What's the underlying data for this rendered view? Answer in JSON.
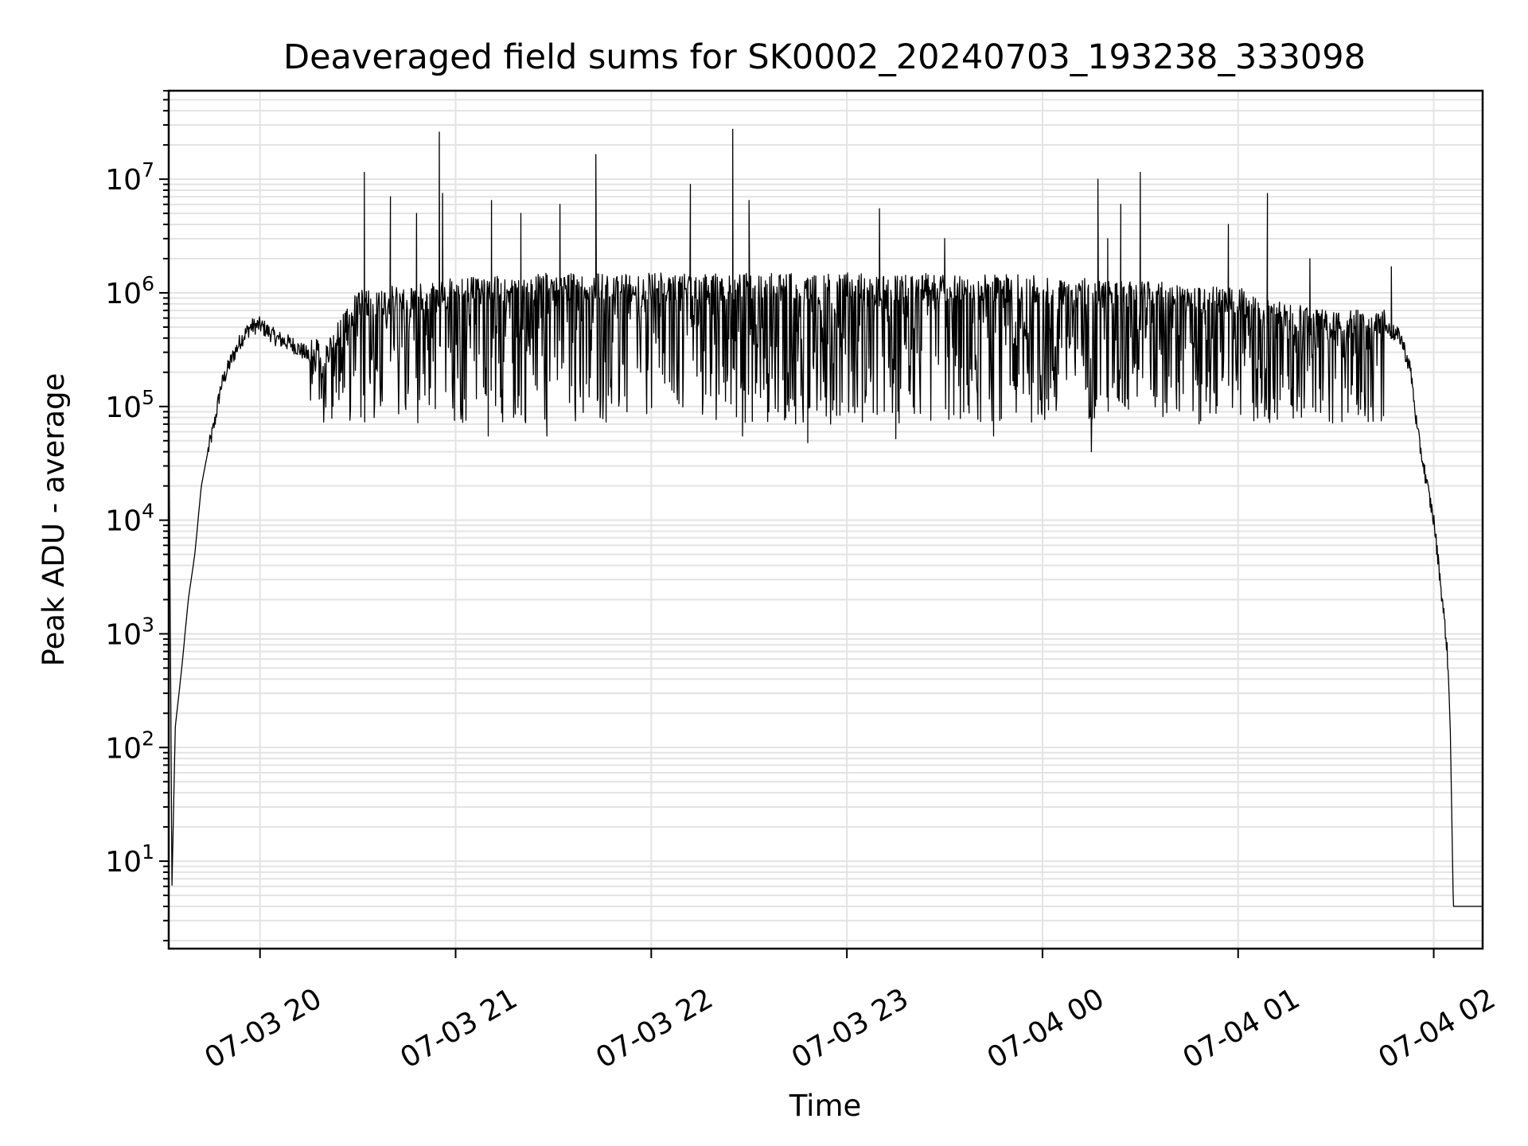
{
  "chart_data": {
    "type": "line",
    "title": "Deaveraged field sums for SK0002_20240703_193238_333098",
    "xlabel": "Time",
    "ylabel": "Peak ADU - average",
    "yscale": "log",
    "grid": true,
    "x_tick_labels": [
      "07-03 20",
      "07-03 21",
      "07-03 22",
      "07-03 23",
      "07-04 00",
      "07-04 01",
      "07-04 02"
    ],
    "x_ticks_hours_since_0703_1900": [
      1,
      2,
      3,
      4,
      5,
      6,
      7
    ],
    "xlim_time": [
      "07-03 19:32",
      "07-04 02:15"
    ],
    "y_tick_labels": [
      {
        "base": "10",
        "exp": "1"
      },
      {
        "base": "10",
        "exp": "2"
      },
      {
        "base": "10",
        "exp": "3"
      },
      {
        "base": "10",
        "exp": "4"
      },
      {
        "base": "10",
        "exp": "5"
      },
      {
        "base": "10",
        "exp": "6"
      },
      {
        "base": "10",
        "exp": "7"
      }
    ],
    "ylim": [
      1.7,
      60000000
    ],
    "series": [
      {
        "name": "",
        "color": "#000000",
        "envelope": [
          [
            "07-03 19:32",
            130000
          ],
          [
            "07-03 19:33",
            6
          ],
          [
            "07-03 19:34",
            150
          ],
          [
            "07-03 19:36",
            500
          ],
          [
            "07-03 19:38",
            2000
          ],
          [
            "07-03 19:40",
            5000
          ],
          [
            "07-03 19:42",
            20000
          ],
          [
            "07-03 19:44",
            40000
          ],
          [
            "07-03 19:46",
            70000
          ],
          [
            "07-03 19:48",
            150000
          ],
          [
            "07-03 19:51",
            250000
          ],
          [
            "07-03 19:54",
            380000
          ],
          [
            "07-03 19:57",
            500000
          ],
          [
            "07-03 20:00",
            520000
          ],
          [
            "07-03 20:05",
            400000
          ],
          [
            "07-03 20:10",
            350000
          ],
          [
            "07-03 20:15",
            280000
          ],
          [
            "07-03 20:20",
            250000
          ],
          [
            "07-03 20:30",
            700000
          ],
          [
            "07-03 21:00",
            900000
          ],
          [
            "07-03 21:30",
            1000000
          ],
          [
            "07-03 22:00",
            1100000
          ],
          [
            "07-03 22:30",
            1200000
          ],
          [
            "07-03 23:00",
            1100000
          ],
          [
            "07-03 23:30",
            1000000
          ],
          [
            "07-04 00:00",
            950000
          ],
          [
            "07-04 00:30",
            850000
          ],
          [
            "07-04 01:00",
            750000
          ],
          [
            "07-04 01:15",
            550000
          ],
          [
            "07-04 01:30",
            450000
          ],
          [
            "07-04 01:45",
            500000
          ],
          [
            "07-04 01:50",
            400000
          ],
          [
            "07-04 01:53",
            200000
          ],
          [
            "07-04 01:55",
            60000
          ],
          [
            "07-04 01:58",
            20000
          ],
          [
            "07-04 02:00",
            10000
          ],
          [
            "07-04 02:02",
            3000
          ],
          [
            "07-04 02:04",
            800
          ],
          [
            "07-04 02:05",
            200
          ],
          [
            "07-04 02:06",
            4
          ],
          [
            "07-04 02:15",
            4
          ]
        ],
        "noisy_band": {
          "from": "07-03 20:15",
          "to": "07-04 01:45",
          "low": 70000,
          "high": 1500000
        },
        "spikes": [
          [
            "07-03 20:32",
            11500000
          ],
          [
            "07-03 20:40",
            7000000
          ],
          [
            "07-03 20:48",
            5000000
          ],
          [
            "07-03 20:56",
            7500000
          ],
          [
            "07-03 21:11",
            6500000
          ],
          [
            "07-03 21:20",
            5000000
          ],
          [
            "07-03 21:32",
            6000000
          ],
          [
            "07-03 21:43",
            4000000
          ],
          [
            "07-03 20:55",
            26000000
          ],
          [
            "07-03 21:43",
            16500000
          ],
          [
            "07-03 22:25",
            27500000
          ],
          [
            "07-03 22:12",
            9000000
          ],
          [
            "07-03 22:30",
            6500000
          ],
          [
            "07-03 23:10",
            5500000
          ],
          [
            "07-03 23:30",
            3000000
          ],
          [
            "07-04 00:20",
            3000000
          ],
          [
            "07-04 00:17",
            10000000
          ],
          [
            "07-04 00:24",
            6000000
          ],
          [
            "07-04 00:30",
            11500000
          ],
          [
            "07-04 00:57",
            4000000
          ],
          [
            "07-04 01:09",
            7500000
          ],
          [
            "07-04 01:22",
            2000000
          ],
          [
            "07-04 01:47",
            1700000
          ]
        ],
        "dips": [
          [
            "07-03 20:35",
            80000
          ],
          [
            "07-03 21:10",
            55000
          ],
          [
            "07-03 21:28",
            55000
          ],
          [
            "07-03 22:28",
            55000
          ],
          [
            "07-03 22:48",
            48000
          ],
          [
            "07-03 23:15",
            52000
          ],
          [
            "07-03 23:45",
            55000
          ],
          [
            "07-04 00:15",
            40000
          ]
        ]
      }
    ]
  }
}
